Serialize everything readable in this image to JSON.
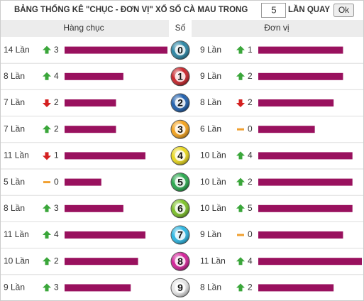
{
  "header": {
    "title": "BẢNG THỐNG KÊ \"CHỤC - ĐƠN VỊ\" XỔ SỐ CÀ MAU TRONG",
    "draws": "5",
    "draws_label": "LẦN QUAY",
    "button": "Ok"
  },
  "columns": {
    "tens": "Hàng chục",
    "digit": "Số",
    "units": "Đơn vị"
  },
  "bar_color": "#99115e",
  "rows": [
    {
      "digit": "0",
      "color": "#2d86a4",
      "tens": {
        "count": {
          "value": 14,
          "label": "14 Lần"
        },
        "trend": "up",
        "delta": 3
      },
      "units": {
        "count": {
          "value": 9,
          "label": "9 Lần"
        },
        "trend": "up",
        "delta": 1
      }
    },
    {
      "digit": "1",
      "color": "#c8262c",
      "tens": {
        "count": {
          "value": 8,
          "label": "8 Lần"
        },
        "trend": "up",
        "delta": 4
      },
      "units": {
        "count": {
          "value": 9,
          "label": "9 Lần"
        },
        "trend": "up",
        "delta": 2
      }
    },
    {
      "digit": "2",
      "color": "#2160ad",
      "tens": {
        "count": {
          "value": 7,
          "label": "7 Lần"
        },
        "trend": "down",
        "delta": 2
      },
      "units": {
        "count": {
          "value": 8,
          "label": "8 Lần"
        },
        "trend": "down",
        "delta": 2
      }
    },
    {
      "digit": "3",
      "color": "#f3a21e",
      "tens": {
        "count": {
          "value": 7,
          "label": "7 Lần"
        },
        "trend": "up",
        "delta": 2
      },
      "units": {
        "count": {
          "value": 6,
          "label": "6 Lần"
        },
        "trend": "flat",
        "delta": 0
      }
    },
    {
      "digit": "4",
      "color": "#e9d81e",
      "tens": {
        "count": {
          "value": 11,
          "label": "11 Lần"
        },
        "trend": "down",
        "delta": 1
      },
      "units": {
        "count": {
          "value": 10,
          "label": "10 Lần"
        },
        "trend": "up",
        "delta": 4
      }
    },
    {
      "digit": "5",
      "color": "#2aa84e",
      "tens": {
        "count": {
          "value": 5,
          "label": "5 Lần"
        },
        "trend": "flat",
        "delta": 0
      },
      "units": {
        "count": {
          "value": 10,
          "label": "10 Lần"
        },
        "trend": "up",
        "delta": 2
      }
    },
    {
      "digit": "6",
      "color": "#7dc12a",
      "tens": {
        "count": {
          "value": 8,
          "label": "8 Lần"
        },
        "trend": "up",
        "delta": 3
      },
      "units": {
        "count": {
          "value": 10,
          "label": "10 Lần"
        },
        "trend": "up",
        "delta": 5
      }
    },
    {
      "digit": "7",
      "color": "#2cb6e2",
      "tens": {
        "count": {
          "value": 11,
          "label": "11 Lần"
        },
        "trend": "up",
        "delta": 4
      },
      "units": {
        "count": {
          "value": 9,
          "label": "9 Lần"
        },
        "trend": "flat",
        "delta": 0
      }
    },
    {
      "digit": "8",
      "color": "#d22398",
      "tens": {
        "count": {
          "value": 10,
          "label": "10 Lần"
        },
        "trend": "up",
        "delta": 2
      },
      "units": {
        "count": {
          "value": 11,
          "label": "11 Lần"
        },
        "trend": "up",
        "delta": 4
      }
    },
    {
      "digit": "9",
      "color": "#e6e6e6",
      "tens": {
        "count": {
          "value": 9,
          "label": "9 Lần"
        },
        "trend": "up",
        "delta": 3
      },
      "units": {
        "count": {
          "value": 8,
          "label": "8 Lần"
        },
        "trend": "up",
        "delta": 2
      }
    }
  ]
}
